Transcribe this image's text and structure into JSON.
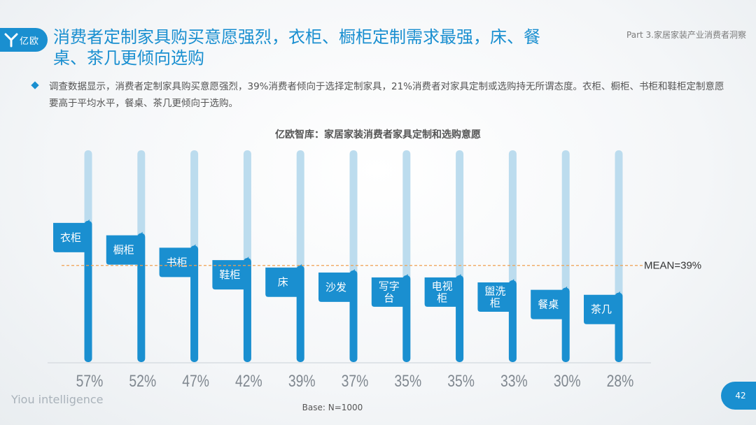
{
  "header": {
    "logo_text": "亿欧",
    "title": "消费者定制家具购买意愿强烈，衣柜、橱柜定制需求最强，床、餐桌、茶几更倾向选购",
    "part_label": "Part 3.家居家装产业消费者洞察"
  },
  "description": "调查数据显示，消费者定制家具购买意愿强烈，39%消费者倾向于选择定制家具，21%消费者对家具定制或选购持无所谓态度。衣柜、橱柜、书柜和鞋柜定制意愿要高于平均水平，餐桌、茶几更倾向于选购。",
  "chart_data": {
    "type": "bar",
    "title": "亿欧智库：家居家装消费者家具定制和选购意愿",
    "categories": [
      "衣柜",
      "橱柜",
      "书柜",
      "鞋柜",
      "床",
      "沙发",
      "写字台",
      "电视柜",
      "盥洗柜",
      "餐桌",
      "茶几"
    ],
    "value_labels": [
      "57%",
      "52%",
      "47%",
      "42%",
      "39%",
      "37%",
      "35%",
      "35%",
      "33%",
      "30%",
      "28%"
    ],
    "values": [
      57,
      52,
      47,
      42,
      39,
      37,
      35,
      35,
      33,
      30,
      28
    ],
    "ylim": [
      0,
      100
    ],
    "mean": 39,
    "mean_label": "MEAN=39%",
    "colors": {
      "bar": "#1a8fd0",
      "track": "#bcdcee",
      "mean_line": "#f0a050",
      "label_text": "#808890"
    }
  },
  "footer": {
    "brand": "Yiou intelligence",
    "base_note": "Base: N=1000",
    "page_number": "42"
  }
}
